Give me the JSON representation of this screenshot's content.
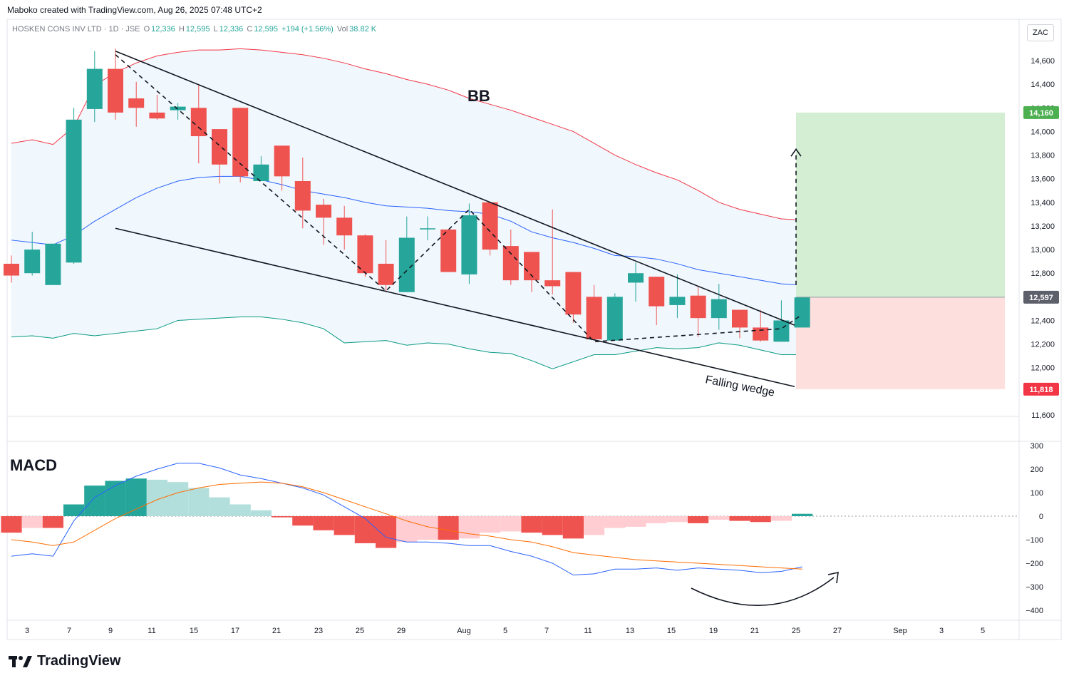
{
  "header": {
    "credit": "Maboko created with TradingView.com, Aug 26, 2025 07:48 UTC+2",
    "symbol": "HOSKEN CONS INV LTD · 1D · JSE",
    "open_label": "O",
    "open": "12,336",
    "high_label": "H",
    "high": "12,595",
    "low_label": "L",
    "low": "12,336",
    "close_label": "C",
    "close": "12,595",
    "change": "+194 (+1.56%)",
    "vol_label": "Vol",
    "volume": "38.82 K",
    "currency": "ZAC"
  },
  "footer": {
    "brand": "TradingView"
  },
  "annotations": {
    "bb": "BB",
    "macd": "MACD",
    "pattern": "Falling wedge"
  },
  "price_tags": {
    "target": "14,160",
    "current": "12,597",
    "stop": "11,818"
  },
  "colors": {
    "up": "#26a69a",
    "down": "#ef5350",
    "bb_upper": "#f23645",
    "bb_basis": "#2962ff",
    "bb_lower": "#089981",
    "bb_fill": "#f0f7fd",
    "macd_line": "#2962ff",
    "signal_line": "#ff6d00",
    "target_zone": "#d4eed4",
    "stop_zone": "#fde0dd"
  },
  "chart_data": [
    {
      "type": "candlestick",
      "title": "HOSKEN CONS INV LTD · 1D · JSE",
      "y_axis_ticks": [
        11600,
        11800,
        12000,
        12200,
        12400,
        12600,
        12800,
        13000,
        13200,
        13400,
        13600,
        13800,
        14000,
        14200,
        14400,
        14600
      ],
      "ylim": [
        11600,
        14700
      ],
      "x_tick_labels": [
        "3",
        "7",
        "9",
        "11",
        "15",
        "17",
        "21",
        "23",
        "25",
        "29",
        "Aug",
        "5",
        "7",
        "11",
        "13",
        "15",
        "19",
        "21",
        "25",
        "27",
        "Sep",
        "3",
        "5"
      ],
      "candles": [
        {
          "o": 12880,
          "h": 12950,
          "l": 12720,
          "c": 12780
        },
        {
          "o": 12800,
          "h": 13150,
          "l": 12780,
          "c": 13000
        },
        {
          "o": 12700,
          "h": 13050,
          "l": 12700,
          "c": 13050
        },
        {
          "o": 12890,
          "h": 14200,
          "l": 12880,
          "c": 14100
        },
        {
          "o": 14190,
          "h": 14680,
          "l": 14080,
          "c": 14530
        },
        {
          "o": 14530,
          "h": 14700,
          "l": 14100,
          "c": 14160
        },
        {
          "o": 14280,
          "h": 14420,
          "l": 14040,
          "c": 14200
        },
        {
          "o": 14160,
          "h": 14310,
          "l": 14100,
          "c": 14110
        },
        {
          "o": 14180,
          "h": 14240,
          "l": 14100,
          "c": 14210
        },
        {
          "o": 14200,
          "h": 14390,
          "l": 13730,
          "c": 13960
        },
        {
          "o": 14020,
          "h": 14020,
          "l": 13560,
          "c": 13720
        },
        {
          "o": 14200,
          "h": 14200,
          "l": 13570,
          "c": 13620
        },
        {
          "o": 13580,
          "h": 13790,
          "l": 13580,
          "c": 13720
        },
        {
          "o": 13880,
          "h": 13880,
          "l": 13500,
          "c": 13620
        },
        {
          "o": 13580,
          "h": 13780,
          "l": 13180,
          "c": 13330
        },
        {
          "o": 13380,
          "h": 13430,
          "l": 13040,
          "c": 13270
        },
        {
          "o": 13270,
          "h": 13370,
          "l": 13000,
          "c": 13120
        },
        {
          "o": 13120,
          "h": 13130,
          "l": 12770,
          "c": 12800
        },
        {
          "o": 12880,
          "h": 13080,
          "l": 12640,
          "c": 12700
        },
        {
          "o": 12640,
          "h": 13280,
          "l": 12640,
          "c": 13100
        },
        {
          "o": 13180,
          "h": 13280,
          "l": 13080,
          "c": 13180
        },
        {
          "o": 13170,
          "h": 13170,
          "l": 12810,
          "c": 12810
        },
        {
          "o": 12790,
          "h": 13390,
          "l": 12710,
          "c": 13290
        },
        {
          "o": 13400,
          "h": 13400,
          "l": 12950,
          "c": 13000
        },
        {
          "o": 13030,
          "h": 13170,
          "l": 12700,
          "c": 12740
        },
        {
          "o": 12980,
          "h": 12980,
          "l": 12640,
          "c": 12740
        },
        {
          "o": 12740,
          "h": 13340,
          "l": 12620,
          "c": 12690
        },
        {
          "o": 12810,
          "h": 12810,
          "l": 12380,
          "c": 12450
        },
        {
          "o": 12600,
          "h": 12700,
          "l": 12230,
          "c": 12240
        },
        {
          "o": 12230,
          "h": 12630,
          "l": 12230,
          "c": 12600
        },
        {
          "o": 12720,
          "h": 12890,
          "l": 12560,
          "c": 12800
        },
        {
          "o": 12770,
          "h": 12770,
          "l": 12360,
          "c": 12520
        },
        {
          "o": 12530,
          "h": 12790,
          "l": 12420,
          "c": 12600
        },
        {
          "o": 12610,
          "h": 12690,
          "l": 12260,
          "c": 12420
        },
        {
          "o": 12420,
          "h": 12710,
          "l": 12320,
          "c": 12580
        },
        {
          "o": 12490,
          "h": 12490,
          "l": 12250,
          "c": 12340
        },
        {
          "o": 12340,
          "h": 12490,
          "l": 12220,
          "c": 12230
        },
        {
          "o": 12220,
          "h": 12570,
          "l": 12220,
          "c": 12400
        },
        {
          "o": 12340,
          "h": 12600,
          "l": 12340,
          "c": 12595
        }
      ],
      "bollinger_bands": {
        "upper": [
          13900,
          13930,
          13890,
          14040,
          14390,
          14500,
          14580,
          14640,
          14670,
          14690,
          14690,
          14700,
          14690,
          14670,
          14650,
          14620,
          14580,
          14530,
          14490,
          14440,
          14400,
          14350,
          14280,
          14230,
          14180,
          14120,
          14060,
          14000,
          13900,
          13800,
          13720,
          13650,
          13590,
          13500,
          13400,
          13340,
          13300,
          13260,
          13250
        ],
        "basis": [
          13080,
          13060,
          13040,
          13120,
          13240,
          13340,
          13440,
          13520,
          13580,
          13610,
          13620,
          13620,
          13590,
          13550,
          13500,
          13470,
          13440,
          13400,
          13370,
          13360,
          13350,
          13330,
          13320,
          13300,
          13240,
          13150,
          13100,
          13060,
          13010,
          12950,
          12940,
          12920,
          12880,
          12830,
          12800,
          12770,
          12740,
          12710,
          12700
        ],
        "lower": [
          12260,
          12270,
          12250,
          12290,
          12270,
          12290,
          12310,
          12330,
          12400,
          12410,
          12420,
          12430,
          12430,
          12410,
          12380,
          12330,
          12210,
          12220,
          12230,
          12190,
          12210,
          12200,
          12160,
          12130,
          12120,
          12060,
          11990,
          12050,
          12110,
          12110,
          12140,
          12170,
          12160,
          12170,
          12210,
          12190,
          12150,
          12110,
          12110
        ]
      },
      "projection": {
        "target": 14160,
        "entry": 12597,
        "stop": 11818
      }
    },
    {
      "type": "macd",
      "title": "MACD",
      "y_axis_ticks": [
        -400,
        -300,
        -200,
        -100,
        0,
        100,
        200,
        300
      ],
      "ylim": [
        -430,
        320
      ],
      "histogram": [
        -70,
        -50,
        -50,
        50,
        130,
        150,
        160,
        155,
        145,
        120,
        80,
        50,
        25,
        -5,
        -40,
        -60,
        -80,
        -115,
        -135,
        -110,
        -100,
        -100,
        -95,
        -70,
        -65,
        -70,
        -80,
        -95,
        -80,
        -50,
        -45,
        -30,
        -25,
        -30,
        -15,
        -20,
        -25,
        -20,
        10
      ],
      "macd_line": [
        -170,
        -160,
        -170,
        -20,
        80,
        130,
        170,
        200,
        225,
        225,
        205,
        175,
        160,
        140,
        120,
        90,
        40,
        -10,
        -90,
        -110,
        -110,
        -115,
        -125,
        -125,
        -150,
        -170,
        -200,
        -250,
        -245,
        -225,
        -225,
        -220,
        -230,
        -220,
        -225,
        -230,
        -240,
        -235,
        -215
      ],
      "signal_line": [
        -100,
        -110,
        -125,
        -110,
        -60,
        -10,
        30,
        70,
        100,
        120,
        135,
        140,
        145,
        140,
        125,
        100,
        70,
        40,
        10,
        -20,
        -45,
        -60,
        -75,
        -85,
        -100,
        -110,
        -130,
        -155,
        -165,
        -175,
        -185,
        -190,
        -195,
        -200,
        -205,
        -210,
        -215,
        -220,
        -225
      ]
    }
  ]
}
